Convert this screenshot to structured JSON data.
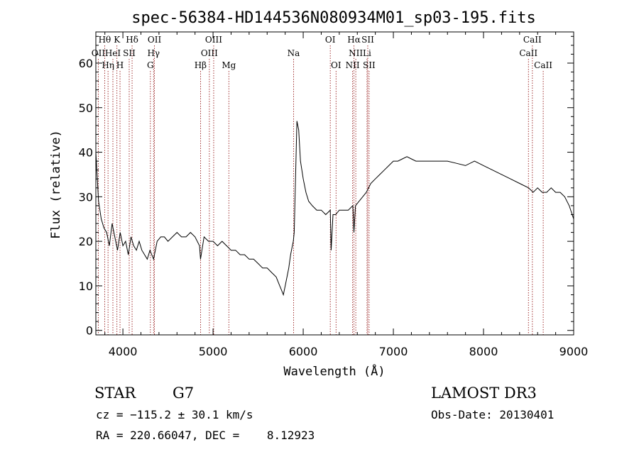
{
  "title": "spec-56384-HD144536N080934M01_sp03-195.fits",
  "info": {
    "class": "STAR",
    "subclass": "G7",
    "survey": "LAMOST DR3",
    "cz": "cz = −115.2 ± 30.1 km/s",
    "obs_date": "Obs-Date: 20130401",
    "radec": "RA = 220.66047, DEC =    8.12923"
  },
  "colors": {
    "spectrum": "#000000",
    "line_markers": "#8b0000",
    "axes": "#000000"
  },
  "chart_data": {
    "type": "line",
    "title": "spec-56384-HD144536N080934M01_sp03-195.fits",
    "xlabel": "Wavelength (Å)",
    "ylabel": "Flux (relative)",
    "xlim": [
      3700,
      9000
    ],
    "ylim": [
      -1,
      67
    ],
    "xticks": [
      4000,
      5000,
      6000,
      7000,
      8000,
      9000
    ],
    "yticks": [
      0,
      10,
      20,
      30,
      40,
      50,
      60
    ],
    "grid": false,
    "series": [
      {
        "x": [
          3700,
          3730,
          3760,
          3790,
          3820,
          3850,
          3880,
          3910,
          3940,
          3970,
          4000,
          4030,
          4060,
          4090,
          4120,
          4150,
          4180,
          4210,
          4240,
          4270,
          4300,
          4340,
          4380,
          4420,
          4460,
          4500,
          4550,
          4600,
          4650,
          4700,
          4750,
          4800,
          4850,
          4861,
          4900,
          4950,
          5000,
          5050,
          5100,
          5150,
          5200,
          5250,
          5300,
          5350,
          5400,
          5450,
          5500,
          5550,
          5600,
          5650,
          5700,
          5740,
          5760,
          5780,
          5800,
          5820,
          5840,
          5860,
          5880,
          5890,
          5900,
          5910,
          5930,
          5950,
          5970,
          6000,
          6030,
          6060,
          6100,
          6150,
          6200,
          6250,
          6300,
          6310,
          6330,
          6360,
          6400,
          6450,
          6500,
          6550,
          6563,
          6580,
          6620,
          6660,
          6700,
          6750,
          6800,
          6850,
          6900,
          6950,
          7000,
          7050,
          7100,
          7150,
          7200,
          7250,
          7300,
          7400,
          7500,
          7600,
          7700,
          7800,
          7900,
          8000,
          8100,
          8200,
          8300,
          8400,
          8500,
          8550,
          8600,
          8650,
          8700,
          8750,
          8800,
          8850,
          8900,
          8950,
          9000
        ],
        "y": [
          40,
          29,
          25,
          23,
          22,
          19,
          24,
          21,
          18,
          22,
          19,
          20,
          17,
          21,
          19,
          18,
          20,
          18,
          17,
          16,
          18,
          16,
          20,
          21,
          21,
          20,
          21,
          22,
          21,
          21,
          22,
          21,
          19,
          16,
          21,
          20,
          20,
          19,
          20,
          19,
          18,
          18,
          17,
          17,
          16,
          16,
          15,
          14,
          14,
          13,
          12,
          10,
          9,
          8,
          10,
          12,
          14,
          17,
          19,
          20,
          22,
          30,
          47,
          45,
          38,
          34,
          31,
          29,
          28,
          27,
          27,
          26,
          27,
          18,
          26,
          26,
          27,
          27,
          27,
          28,
          22,
          28,
          29,
          30,
          31,
          33,
          34,
          35,
          36,
          37,
          38,
          38,
          38.5,
          39,
          38.5,
          38,
          38,
          38,
          38,
          38,
          37.5,
          37,
          38,
          37,
          36,
          35,
          34,
          33,
          32,
          31,
          32,
          31,
          31,
          32,
          31,
          31,
          30,
          28,
          25
        ]
      }
    ],
    "line_markers": [
      {
        "label": "Hθ",
        "x": 3798,
        "row": 0
      },
      {
        "label": "K",
        "x": 3934,
        "row": 0
      },
      {
        "label": "Hδ",
        "x": 4102,
        "row": 0
      },
      {
        "label": "OII",
        "x": 4350,
        "row": 0
      },
      {
        "label": "OIII",
        "x": 5007,
        "row": 0
      },
      {
        "label": "OI",
        "x": 6300,
        "row": 0
      },
      {
        "label": "Hα",
        "x": 6563,
        "row": 0
      },
      {
        "label": "SII",
        "x": 6716,
        "row": 0
      },
      {
        "label": "CaII",
        "x": 8542,
        "row": 0
      },
      {
        "label": "OII",
        "x": 3727,
        "row": 1
      },
      {
        "label": "HeI",
        "x": 3889,
        "row": 1
      },
      {
        "label": "SII",
        "x": 4070,
        "row": 1
      },
      {
        "label": "Hγ",
        "x": 4340,
        "row": 1
      },
      {
        "label": "OIII",
        "x": 4959,
        "row": 1
      },
      {
        "label": "Na",
        "x": 5893,
        "row": 1
      },
      {
        "label": "NII",
        "x": 6583,
        "row": 1
      },
      {
        "label": "Li",
        "x": 6708,
        "row": 1
      },
      {
        "label": "CaII",
        "x": 8498,
        "row": 1
      },
      {
        "label": "Hη",
        "x": 3835,
        "row": 2
      },
      {
        "label": "H",
        "x": 3968,
        "row": 2
      },
      {
        "label": "G",
        "x": 4305,
        "row": 2
      },
      {
        "label": "Hβ",
        "x": 4861,
        "row": 2
      },
      {
        "label": "Mg",
        "x": 5175,
        "row": 2
      },
      {
        "label": "OI",
        "x": 6364,
        "row": 2
      },
      {
        "label": "NII",
        "x": 6548,
        "row": 2
      },
      {
        "label": "SII",
        "x": 6731,
        "row": 2
      },
      {
        "label": "CaII",
        "x": 8662,
        "row": 2
      }
    ]
  }
}
